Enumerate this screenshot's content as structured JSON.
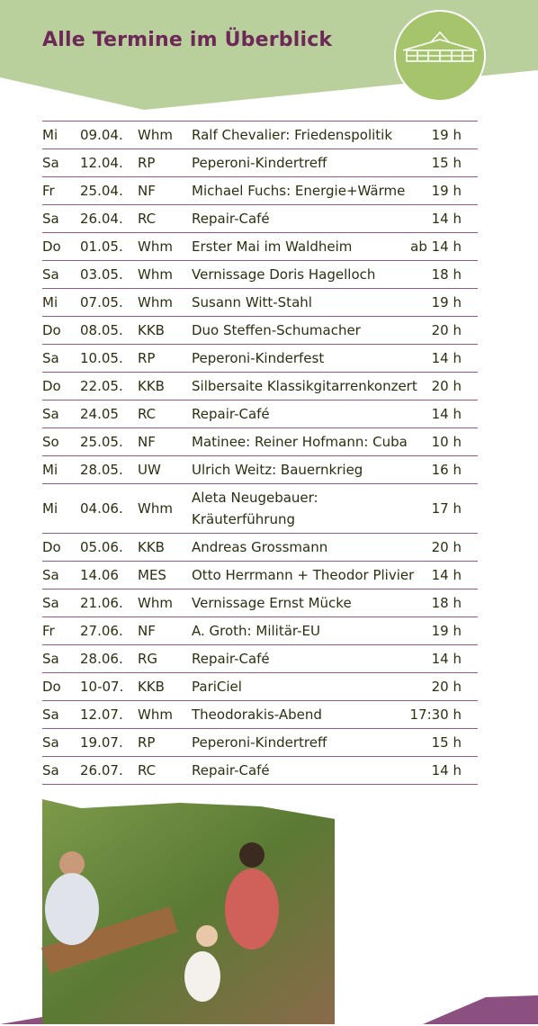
{
  "header": {
    "title": "Alle Termine im Überblick"
  },
  "table": {
    "rows": [
      [
        "Mi",
        "09.04.",
        "Whm",
        "Ralf Chevalier: Friedenspolitik",
        "19 h"
      ],
      [
        "Sa",
        "12.04.",
        "RP",
        "Peperoni-Kindertreff",
        "15 h"
      ],
      [
        "Fr",
        "25.04.",
        "NF",
        "Michael Fuchs: Energie+Wärme",
        "19 h"
      ],
      [
        "Sa",
        "26.04.",
        "RC",
        "Repair-Café",
        "14 h"
      ],
      [
        "Do",
        "01.05.",
        "Whm",
        "Erster Mai im Waldheim",
        "ab 14 h"
      ],
      [
        "Sa",
        "03.05.",
        "Whm",
        "Vernissage Doris Hagelloch",
        "18 h"
      ],
      [
        "Mi",
        "07.05.",
        "Whm",
        "Susann Witt-Stahl",
        "19 h"
      ],
      [
        "Do",
        "08.05.",
        "KKB",
        "Duo Steffen-Schumacher",
        "20 h"
      ],
      [
        "Sa",
        "10.05.",
        "RP",
        "Peperoni-Kinderfest",
        "14 h"
      ],
      [
        "Do",
        "22.05.",
        "KKB",
        "Silbersaite Klassikgitarrenkonzert",
        "20 h"
      ],
      [
        "Sa",
        "24.05",
        "RC",
        "Repair-Café",
        "14 h"
      ],
      [
        "So",
        "25.05.",
        "NF",
        "Matinee: Reiner Hofmann: Cuba",
        "10 h"
      ],
      [
        "Mi",
        "28.05.",
        "UW",
        "Ulrich Weitz: Bauernkrieg",
        "16 h"
      ],
      [
        "Mi",
        "04.06.",
        "Whm",
        [
          "Aleta Neugebauer:",
          "Kräuterführung"
        ],
        "17 h"
      ],
      [
        "Do",
        "05.06.",
        "KKB",
        "Andreas Grossmann",
        "20 h"
      ],
      [
        "Sa",
        "14.06",
        "MES",
        "Otto Herrmann + Theodor Plivier",
        "14 h"
      ],
      [
        "Sa",
        "21.06.",
        "Whm",
        "Vernissage Ernst Mücke",
        "18 h"
      ],
      [
        "Fr",
        "27.06.",
        "NF",
        "A. Groth: Militär-EU",
        "19 h"
      ],
      [
        "Sa",
        "28.06.",
        "RG",
        "Repair-Café",
        "14 h"
      ],
      [
        "Do",
        "10-07.",
        "KKB",
        "PariCiel",
        "20 h"
      ],
      [
        "Sa",
        "12.07.",
        "Whm",
        "Theodorakis-Abend",
        "17:30 h"
      ],
      [
        "Sa",
        "19.07.",
        "RP",
        "Peperoni-Kindertreff",
        "15 h"
      ],
      [
        "Sa",
        "26.07.",
        "RC",
        "Repair-Café",
        "14 h"
      ]
    ]
  }
}
